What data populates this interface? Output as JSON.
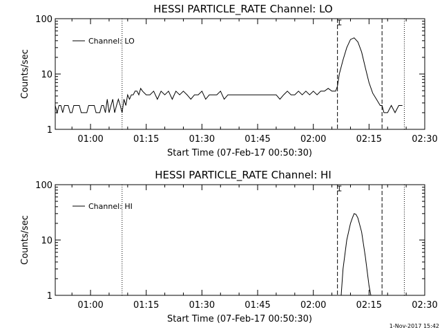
{
  "chart_data": [
    {
      "type": "line",
      "title": "HESSI PARTICLE_RATE Channel: LO",
      "xlabel": "Start Time (07-Feb-17 00:50:30)",
      "ylabel": "Counts/sec",
      "y_scale": "log",
      "ylim": [
        1,
        100
      ],
      "xlim": [
        "00:50:30",
        "02:30:00"
      ],
      "x_ticks": [
        "01:00",
        "01:15",
        "01:30",
        "01:45",
        "02:00",
        "02:15",
        "02:30"
      ],
      "y_ticks": [
        "1",
        "10",
        "100"
      ],
      "legend": {
        "position": "top-left",
        "label": "Channel: LO"
      },
      "vlines": [
        {
          "x": "01:08:30",
          "style": "dotted"
        },
        {
          "x": "02:06:30",
          "style": "dashed"
        },
        {
          "x": "02:18:30",
          "style": "dashed"
        },
        {
          "x": "02:24:30",
          "style": "dotted"
        }
      ],
      "markers": [
        {
          "x": "02:07:00",
          "symbol": "error-bar"
        }
      ],
      "series": [
        {
          "x": [
            "00:50:30",
            "00:51:00",
            "00:51:30",
            "00:52:00",
            "00:52:30",
            "00:53:00",
            "00:53:30",
            "00:54:00",
            "00:54:30",
            "00:55:00",
            "00:55:30",
            "00:56:00",
            "00:56:30",
            "00:57:00",
            "00:57:30",
            "00:58:00",
            "00:58:30",
            "00:59:00",
            "00:59:30",
            "01:00:00",
            "01:00:30",
            "01:01:00",
            "01:01:30",
            "01:02:00",
            "01:02:30",
            "01:03:00",
            "01:03:30",
            "01:04:00",
            "01:04:30",
            "01:05:00",
            "01:05:30",
            "01:06:00",
            "01:06:30",
            "01:07:00",
            "01:07:30",
            "01:08:00",
            "01:08:30",
            "01:09:00",
            "01:09:30",
            "01:10:00",
            "01:10:30",
            "01:11:00",
            "01:11:30",
            "01:12:00",
            "01:12:30",
            "01:13:00",
            "01:13:30",
            "01:14:00",
            "01:15:00",
            "01:16:00",
            "01:17:00",
            "01:18:00",
            "01:19:00",
            "01:20:00",
            "01:21:00",
            "01:22:00",
            "01:23:00",
            "01:24:00",
            "01:25:00",
            "01:26:00",
            "01:27:00",
            "01:28:00",
            "01:29:00",
            "01:30:00",
            "01:31:00",
            "01:32:00",
            "01:33:00",
            "01:34:00",
            "01:35:00",
            "01:36:00",
            "01:37:00",
            "01:38:00",
            "01:39:00",
            "01:40:00",
            "01:41:00",
            "01:42:00",
            "01:43:00",
            "01:44:00",
            "01:45:00",
            "01:46:00",
            "01:47:00",
            "01:48:00",
            "01:49:00",
            "01:50:00",
            "01:51:00",
            "01:52:00",
            "01:53:00",
            "01:54:00",
            "01:55:00",
            "01:56:00",
            "01:57:00",
            "01:58:00",
            "01:59:00",
            "02:00:00",
            "02:01:00",
            "02:02:00",
            "02:03:00",
            "02:04:00",
            "02:05:00",
            "02:06:00",
            "02:06:30",
            "02:07:00",
            "02:08:00",
            "02:09:00",
            "02:10:00",
            "02:11:00",
            "02:12:00",
            "02:13:00",
            "02:14:00",
            "02:15:00",
            "02:16:00",
            "02:17:00",
            "02:18:00",
            "02:18:30",
            "02:19:00",
            "02:20:00",
            "02:21:00",
            "02:22:00",
            "02:23:00",
            "02:24:00"
          ],
          "values": [
            2.7,
            2,
            2.7,
            2.7,
            2,
            2.7,
            2.7,
            2.7,
            2,
            2,
            2.7,
            2.7,
            2.7,
            2.7,
            2,
            2,
            2,
            2,
            2.7,
            2.7,
            2.7,
            2.7,
            2,
            2,
            2,
            2.7,
            2.7,
            2,
            3.5,
            2,
            2.7,
            3.5,
            2,
            2.7,
            3.5,
            2.7,
            2,
            3.5,
            2.7,
            4.2,
            3.5,
            4.2,
            4.2,
            4.9,
            4.9,
            4.2,
            5.5,
            4.9,
            4.2,
            4.2,
            4.9,
            3.5,
            4.9,
            4.2,
            4.9,
            3.5,
            4.9,
            4.2,
            4.9,
            4.2,
            3.5,
            4.2,
            4.2,
            4.9,
            3.5,
            4.2,
            4.2,
            4.2,
            4.9,
            3.5,
            4.2,
            4.2,
            4.2,
            4.2,
            4.2,
            4.2,
            4.2,
            4.2,
            4.2,
            4.2,
            4.2,
            4.2,
            4.2,
            4.2,
            3.5,
            4.2,
            4.9,
            4.2,
            4.2,
            4.9,
            4.2,
            4.9,
            4.2,
            4.9,
            4.2,
            4.9,
            4.9,
            5.5,
            4.9,
            4.9,
            6,
            10,
            18,
            30,
            42,
            45,
            38,
            25,
            13,
            7,
            4.5,
            3.5,
            2.7,
            2.7,
            2,
            2,
            2.7,
            2,
            2.7,
            2.7
          ]
        }
      ]
    },
    {
      "type": "line",
      "title": "HESSI PARTICLE_RATE Channel: HI",
      "xlabel": "Start Time (07-Feb-17 00:50:30)",
      "ylabel": "Counts/sec",
      "y_scale": "log",
      "ylim": [
        1,
        100
      ],
      "xlim": [
        "00:50:30",
        "02:30:00"
      ],
      "x_ticks": [
        "01:00",
        "01:15",
        "01:30",
        "01:45",
        "02:00",
        "02:15",
        "02:30"
      ],
      "y_ticks": [
        "1",
        "10",
        "100"
      ],
      "legend": {
        "position": "top-left",
        "label": "Channel: HI"
      },
      "vlines": [
        {
          "x": "01:08:30",
          "style": "dotted"
        },
        {
          "x": "02:06:30",
          "style": "dashed"
        },
        {
          "x": "02:18:30",
          "style": "dashed"
        },
        {
          "x": "02:24:30",
          "style": "dotted"
        }
      ],
      "markers": [
        {
          "x": "02:07:00",
          "symbol": "error-bar"
        }
      ],
      "series": [
        {
          "x": [
            "02:07:30",
            "02:08:00",
            "02:09:00",
            "02:10:00",
            "02:10:30",
            "02:11:00",
            "02:11:30",
            "02:12:00",
            "02:13:00",
            "02:14:00",
            "02:15:00",
            "02:15:30"
          ],
          "values": [
            1,
            3,
            10,
            20,
            25,
            30,
            29,
            25,
            14,
            5,
            1.5,
            1
          ]
        }
      ]
    }
  ],
  "timestamp": "1-Nov-2017 15:42"
}
